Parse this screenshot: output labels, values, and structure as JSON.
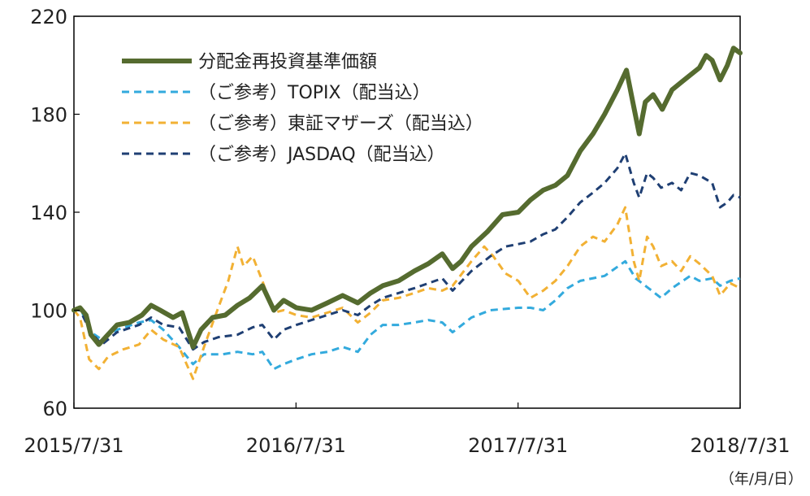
{
  "chart_data": {
    "type": "line",
    "xlabel": "",
    "ylabel": "",
    "unit_label": "（年/月/日）",
    "x_range": [
      "2015-07-31",
      "2018-07-31"
    ],
    "x_ticks": [
      "2015/7/31",
      "2016/7/31",
      "2017/7/31",
      "2018/7/31"
    ],
    "ylim": [
      60,
      220
    ],
    "y_ticks": [
      60,
      100,
      140,
      180,
      220
    ],
    "grid": false,
    "legend_position": "top-left",
    "series": [
      {
        "name": "分配金再投資基準価額",
        "color": "#556b2f",
        "style": "solid",
        "points": [
          [
            "2015-07-31",
            100
          ],
          [
            "2015-08-10",
            101
          ],
          [
            "2015-08-20",
            98
          ],
          [
            "2015-08-28",
            90
          ],
          [
            "2015-09-10",
            86
          ],
          [
            "2015-09-25",
            90
          ],
          [
            "2015-10-10",
            94
          ],
          [
            "2015-10-30",
            95
          ],
          [
            "2015-11-20",
            98
          ],
          [
            "2015-12-05",
            102
          ],
          [
            "2015-12-20",
            100
          ],
          [
            "2016-01-10",
            97
          ],
          [
            "2016-01-25",
            99
          ],
          [
            "2016-02-12",
            85
          ],
          [
            "2016-02-25",
            92
          ],
          [
            "2016-03-15",
            97
          ],
          [
            "2016-04-05",
            98
          ],
          [
            "2016-04-25",
            102
          ],
          [
            "2016-05-15",
            105
          ],
          [
            "2016-06-05",
            110
          ],
          [
            "2016-06-24",
            100
          ],
          [
            "2016-07-10",
            104
          ],
          [
            "2016-07-31",
            101
          ],
          [
            "2016-08-25",
            100
          ],
          [
            "2016-09-20",
            103
          ],
          [
            "2016-10-15",
            106
          ],
          [
            "2016-11-09",
            103
          ],
          [
            "2016-11-30",
            107
          ],
          [
            "2016-12-20",
            110
          ],
          [
            "2017-01-15",
            112
          ],
          [
            "2017-02-10",
            116
          ],
          [
            "2017-03-05",
            119
          ],
          [
            "2017-03-28",
            123
          ],
          [
            "2017-04-14",
            117
          ],
          [
            "2017-04-28",
            120
          ],
          [
            "2017-05-15",
            126
          ],
          [
            "2017-06-10",
            132
          ],
          [
            "2017-07-05",
            139
          ],
          [
            "2017-07-31",
            140
          ],
          [
            "2017-08-20",
            145
          ],
          [
            "2017-09-10",
            149
          ],
          [
            "2017-09-30",
            151
          ],
          [
            "2017-10-20",
            155
          ],
          [
            "2017-11-10",
            165
          ],
          [
            "2017-12-01",
            172
          ],
          [
            "2017-12-20",
            180
          ],
          [
            "2018-01-10",
            190
          ],
          [
            "2018-01-25",
            198
          ],
          [
            "2018-02-06",
            183
          ],
          [
            "2018-02-15",
            172
          ],
          [
            "2018-02-25",
            185
          ],
          [
            "2018-03-10",
            188
          ],
          [
            "2018-03-25",
            182
          ],
          [
            "2018-04-10",
            190
          ],
          [
            "2018-04-25",
            193
          ],
          [
            "2018-05-10",
            196
          ],
          [
            "2018-05-25",
            199
          ],
          [
            "2018-06-05",
            204
          ],
          [
            "2018-06-15",
            202
          ],
          [
            "2018-06-28",
            194
          ],
          [
            "2018-07-10",
            200
          ],
          [
            "2018-07-20",
            207
          ],
          [
            "2018-07-31",
            205
          ]
        ]
      },
      {
        "name": "（ご参考）TOPIX（配当込）",
        "color": "#33aadd",
        "style": "dashed",
        "points": [
          [
            "2015-07-31",
            100
          ],
          [
            "2015-08-10",
            101
          ],
          [
            "2015-08-28",
            91
          ],
          [
            "2015-09-15",
            88
          ],
          [
            "2015-10-10",
            92
          ],
          [
            "2015-11-15",
            95
          ],
          [
            "2015-12-05",
            96
          ],
          [
            "2015-12-25",
            92
          ],
          [
            "2016-01-20",
            85
          ],
          [
            "2016-02-12",
            78
          ],
          [
            "2016-03-01",
            82
          ],
          [
            "2016-04-01",
            82
          ],
          [
            "2016-04-25",
            83
          ],
          [
            "2016-05-20",
            82
          ],
          [
            "2016-06-05",
            83
          ],
          [
            "2016-06-24",
            76
          ],
          [
            "2016-07-10",
            78
          ],
          [
            "2016-07-31",
            80
          ],
          [
            "2016-08-25",
            82
          ],
          [
            "2016-09-20",
            83
          ],
          [
            "2016-10-15",
            85
          ],
          [
            "2016-11-09",
            83
          ],
          [
            "2016-11-30",
            90
          ],
          [
            "2016-12-20",
            94
          ],
          [
            "2017-01-15",
            94
          ],
          [
            "2017-02-10",
            95
          ],
          [
            "2017-03-05",
            96
          ],
          [
            "2017-03-28",
            95
          ],
          [
            "2017-04-14",
            91
          ],
          [
            "2017-05-15",
            97
          ],
          [
            "2017-06-15",
            100
          ],
          [
            "2017-07-31",
            101
          ],
          [
            "2017-08-20",
            101
          ],
          [
            "2017-09-10",
            100
          ],
          [
            "2017-09-30",
            104
          ],
          [
            "2017-10-20",
            109
          ],
          [
            "2017-11-10",
            112
          ],
          [
            "2017-12-20",
            114
          ],
          [
            "2018-01-23",
            120
          ],
          [
            "2018-02-09",
            113
          ],
          [
            "2018-02-25",
            110
          ],
          [
            "2018-03-23",
            105
          ],
          [
            "2018-04-10",
            109
          ],
          [
            "2018-05-10",
            114
          ],
          [
            "2018-05-25",
            112
          ],
          [
            "2018-06-15",
            113
          ],
          [
            "2018-06-28",
            110
          ],
          [
            "2018-07-15",
            112
          ],
          [
            "2018-07-31",
            113
          ]
        ]
      },
      {
        "name": "（ご参考）東証マザーズ（配当込）",
        "color": "#f2b134",
        "style": "dashed",
        "points": [
          [
            "2015-07-31",
            100
          ],
          [
            "2015-08-10",
            97
          ],
          [
            "2015-08-25",
            80
          ],
          [
            "2015-09-10",
            76
          ],
          [
            "2015-09-25",
            81
          ],
          [
            "2015-10-20",
            84
          ],
          [
            "2015-11-15",
            86
          ],
          [
            "2015-12-05",
            92
          ],
          [
            "2015-12-25",
            88
          ],
          [
            "2016-01-20",
            85
          ],
          [
            "2016-02-12",
            72
          ],
          [
            "2016-03-01",
            85
          ],
          [
            "2016-03-20",
            98
          ],
          [
            "2016-04-10",
            112
          ],
          [
            "2016-04-25",
            126
          ],
          [
            "2016-05-05",
            118
          ],
          [
            "2016-05-20",
            122
          ],
          [
            "2016-06-05",
            112
          ],
          [
            "2016-06-24",
            99
          ],
          [
            "2016-07-10",
            100
          ],
          [
            "2016-07-31",
            98
          ],
          [
            "2016-08-25",
            97
          ],
          [
            "2016-09-20",
            99
          ],
          [
            "2016-10-15",
            101
          ],
          [
            "2016-11-09",
            95
          ],
          [
            "2016-11-30",
            99
          ],
          [
            "2016-12-20",
            104
          ],
          [
            "2017-01-15",
            105
          ],
          [
            "2017-02-10",
            107
          ],
          [
            "2017-03-05",
            109
          ],
          [
            "2017-03-28",
            108
          ],
          [
            "2017-04-14",
            110
          ],
          [
            "2017-05-15",
            120
          ],
          [
            "2017-06-05",
            126
          ],
          [
            "2017-06-20",
            122
          ],
          [
            "2017-07-10",
            115
          ],
          [
            "2017-07-31",
            112
          ],
          [
            "2017-08-20",
            105
          ],
          [
            "2017-09-10",
            108
          ],
          [
            "2017-09-30",
            112
          ],
          [
            "2017-10-20",
            118
          ],
          [
            "2017-11-10",
            126
          ],
          [
            "2017-12-01",
            130
          ],
          [
            "2017-12-20",
            128
          ],
          [
            "2018-01-10",
            135
          ],
          [
            "2018-01-23",
            142
          ],
          [
            "2018-02-06",
            120
          ],
          [
            "2018-02-15",
            112
          ],
          [
            "2018-02-28",
            130
          ],
          [
            "2018-03-10",
            126
          ],
          [
            "2018-03-23",
            118
          ],
          [
            "2018-04-10",
            120
          ],
          [
            "2018-04-25",
            116
          ],
          [
            "2018-05-10",
            122
          ],
          [
            "2018-05-25",
            119
          ],
          [
            "2018-06-15",
            114
          ],
          [
            "2018-06-28",
            106
          ],
          [
            "2018-07-15",
            111
          ],
          [
            "2018-07-31",
            109
          ]
        ]
      },
      {
        "name": "（ご参考）JASDAQ（配当込）",
        "color": "#1f3f73",
        "style": "dashed",
        "points": [
          [
            "2015-07-31",
            100
          ],
          [
            "2015-08-10",
            100
          ],
          [
            "2015-08-28",
            91
          ],
          [
            "2015-09-15",
            86
          ],
          [
            "2015-10-10",
            91
          ],
          [
            "2015-11-15",
            94
          ],
          [
            "2015-12-05",
            97
          ],
          [
            "2015-12-25",
            94
          ],
          [
            "2016-01-20",
            93
          ],
          [
            "2016-02-12",
            84
          ],
          [
            "2016-03-01",
            87
          ],
          [
            "2016-03-25",
            89
          ],
          [
            "2016-04-25",
            90
          ],
          [
            "2016-05-20",
            93
          ],
          [
            "2016-06-05",
            94
          ],
          [
            "2016-06-24",
            88
          ],
          [
            "2016-07-10",
            92
          ],
          [
            "2016-07-31",
            94
          ],
          [
            "2016-08-25",
            96
          ],
          [
            "2016-09-20",
            98
          ],
          [
            "2016-10-15",
            100
          ],
          [
            "2016-11-09",
            98
          ],
          [
            "2016-11-30",
            102
          ],
          [
            "2016-12-20",
            105
          ],
          [
            "2017-01-15",
            107
          ],
          [
            "2017-02-10",
            109
          ],
          [
            "2017-03-05",
            111
          ],
          [
            "2017-03-28",
            113
          ],
          [
            "2017-04-14",
            108
          ],
          [
            "2017-05-15",
            116
          ],
          [
            "2017-06-15",
            122
          ],
          [
            "2017-07-10",
            126
          ],
          [
            "2017-07-31",
            127
          ],
          [
            "2017-08-20",
            128
          ],
          [
            "2017-09-10",
            131
          ],
          [
            "2017-09-30",
            133
          ],
          [
            "2017-10-20",
            138
          ],
          [
            "2017-11-10",
            144
          ],
          [
            "2017-12-01",
            148
          ],
          [
            "2017-12-20",
            152
          ],
          [
            "2018-01-10",
            158
          ],
          [
            "2018-01-23",
            164
          ],
          [
            "2018-02-06",
            152
          ],
          [
            "2018-02-15",
            146
          ],
          [
            "2018-02-28",
            156
          ],
          [
            "2018-03-10",
            154
          ],
          [
            "2018-03-23",
            150
          ],
          [
            "2018-04-10",
            152
          ],
          [
            "2018-04-25",
            149
          ],
          [
            "2018-05-10",
            156
          ],
          [
            "2018-05-25",
            155
          ],
          [
            "2018-06-15",
            152
          ],
          [
            "2018-06-28",
            142
          ],
          [
            "2018-07-10",
            144
          ],
          [
            "2018-07-20",
            147
          ],
          [
            "2018-07-31",
            146
          ]
        ]
      }
    ]
  }
}
